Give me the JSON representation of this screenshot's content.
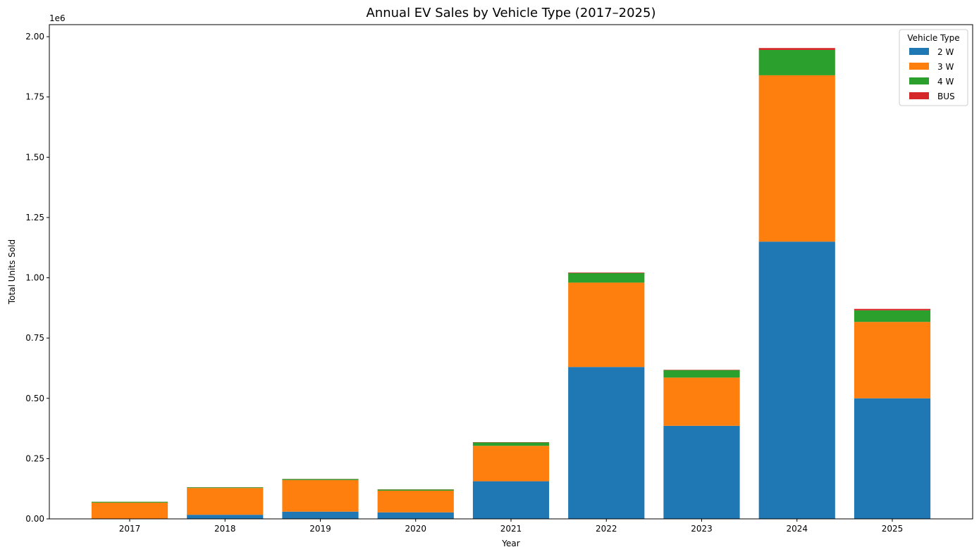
{
  "chart_data": {
    "type": "bar",
    "stacked": true,
    "title": "Annual EV Sales by Vehicle Type (2017–2025)",
    "xlabel": "Year",
    "ylabel": "Total Units Sold",
    "offset_label": "1e6",
    "categories": [
      "2017",
      "2018",
      "2019",
      "2020",
      "2021",
      "2022",
      "2023",
      "2024",
      "2025"
    ],
    "series": [
      {
        "name": "2 W",
        "color": "#1f77b4",
        "values": [
          1500,
          17000,
          30000,
          27000,
          156000,
          630000,
          386000,
          1150000,
          500000
        ]
      },
      {
        "name": "3 W",
        "color": "#ff7f0e",
        "values": [
          66000,
          111000,
          131000,
          90000,
          147000,
          350000,
          200000,
          690000,
          317000
        ]
      },
      {
        "name": "4 W",
        "color": "#2ca02c",
        "values": [
          3500,
          3000,
          4000,
          5000,
          14000,
          40000,
          31000,
          105000,
          48000
        ]
      },
      {
        "name": "BUS",
        "color": "#d62728",
        "values": [
          300,
          500,
          700,
          800,
          1200,
          2000,
          1500,
          8000,
          6000
        ]
      }
    ],
    "ylim": [
      0,
      2050000
    ],
    "yticks": [
      0,
      250000,
      500000,
      750000,
      1000000,
      1250000,
      1500000,
      1750000,
      2000000
    ],
    "ytick_labels": [
      "0.00",
      "0.25",
      "0.50",
      "0.75",
      "1.00",
      "1.25",
      "1.50",
      "1.75",
      "2.00"
    ],
    "legend": {
      "title": "Vehicle Type",
      "placement": "top-right"
    },
    "grid": false
  }
}
